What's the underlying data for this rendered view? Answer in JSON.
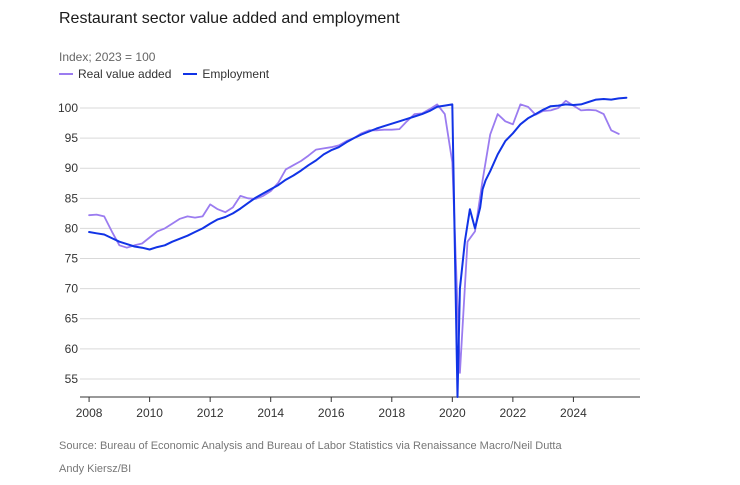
{
  "chart_data": {
    "type": "line",
    "title": "Restaurant sector value added and employment",
    "subtitle": "Index; 2023 = 100",
    "xlabel": "",
    "ylabel": "",
    "xlim": [
      2007.7,
      2026.2
    ],
    "ylim": [
      52,
      101.5
    ],
    "x_ticks": [
      2008,
      2010,
      2012,
      2014,
      2016,
      2018,
      2020,
      2022,
      2024
    ],
    "y_ticks": [
      55,
      60,
      65,
      70,
      75,
      80,
      85,
      90,
      95,
      100
    ],
    "grid": "horizontal",
    "legend": "top-left",
    "series": [
      {
        "name": "Real value added",
        "color": "#9b7cf0",
        "x": [
          2008.0,
          2008.25,
          2008.5,
          2008.75,
          2009.0,
          2009.25,
          2009.5,
          2009.75,
          2010.0,
          2010.25,
          2010.5,
          2010.75,
          2011.0,
          2011.25,
          2011.5,
          2011.75,
          2012.0,
          2012.25,
          2012.5,
          2012.75,
          2013.0,
          2013.25,
          2013.5,
          2013.75,
          2014.0,
          2014.25,
          2014.5,
          2014.75,
          2015.0,
          2015.25,
          2015.5,
          2015.75,
          2016.0,
          2016.25,
          2016.5,
          2016.75,
          2017.0,
          2017.25,
          2017.5,
          2017.75,
          2018.0,
          2018.25,
          2018.5,
          2018.75,
          2019.0,
          2019.25,
          2019.5,
          2019.75,
          2020.0,
          2020.25,
          2020.5,
          2020.75,
          2021.0,
          2021.25,
          2021.5,
          2021.75,
          2022.0,
          2022.25,
          2022.5,
          2022.75,
          2023.0,
          2023.25,
          2023.5,
          2023.75,
          2024.0,
          2024.25,
          2024.5,
          2024.75,
          2025.0,
          2025.25,
          2025.5
        ],
        "values": [
          82.2,
          82.3,
          82.0,
          79.5,
          77.2,
          76.8,
          77.2,
          77.5,
          78.5,
          79.5,
          80.0,
          80.8,
          81.6,
          82.0,
          81.8,
          82.0,
          84.0,
          83.2,
          82.7,
          83.5,
          85.4,
          85.0,
          84.9,
          85.4,
          86.2,
          87.6,
          89.8,
          90.5,
          91.2,
          92.1,
          93.1,
          93.3,
          93.5,
          93.8,
          94.5,
          95.0,
          95.8,
          96.3,
          96.3,
          96.4,
          96.4,
          96.5,
          97.8,
          99.0,
          99.1,
          99.8,
          100.6,
          99.0,
          91.0,
          56.0,
          77.8,
          79.5,
          88.0,
          95.6,
          99.0,
          97.8,
          97.3,
          100.6,
          100.2,
          98.9,
          99.5,
          99.6,
          100.0,
          101.2,
          100.4,
          99.6,
          99.7,
          99.6,
          99.0,
          96.3,
          95.7
        ]
      },
      {
        "name": "Employment",
        "color": "#1133e6",
        "x": [
          2008.0,
          2008.25,
          2008.5,
          2008.75,
          2009.0,
          2009.25,
          2009.5,
          2009.75,
          2010.0,
          2010.25,
          2010.5,
          2010.75,
          2011.0,
          2011.25,
          2011.5,
          2011.75,
          2012.0,
          2012.25,
          2012.5,
          2012.75,
          2013.0,
          2013.25,
          2013.5,
          2013.75,
          2014.0,
          2014.25,
          2014.5,
          2014.75,
          2015.0,
          2015.25,
          2015.5,
          2015.75,
          2016.0,
          2016.25,
          2016.5,
          2016.75,
          2017.0,
          2017.25,
          2017.5,
          2017.75,
          2018.0,
          2018.25,
          2018.5,
          2018.75,
          2019.0,
          2019.25,
          2019.5,
          2019.75,
          2020.0,
          2020.17,
          2020.25,
          2020.42,
          2020.58,
          2020.75,
          2020.92,
          2021.0,
          2021.1,
          2021.25,
          2021.5,
          2021.75,
          2022.0,
          2022.25,
          2022.5,
          2022.75,
          2023.0,
          2023.25,
          2023.5,
          2023.75,
          2024.0,
          2024.25,
          2024.5,
          2024.75,
          2025.0,
          2025.25,
          2025.5,
          2025.75
        ],
        "values": [
          79.4,
          79.2,
          79.0,
          78.4,
          77.8,
          77.4,
          77.0,
          76.8,
          76.5,
          76.9,
          77.2,
          77.8,
          78.3,
          78.8,
          79.4,
          80.0,
          80.8,
          81.5,
          81.9,
          82.5,
          83.3,
          84.2,
          85.1,
          85.8,
          86.5,
          87.2,
          88.1,
          88.8,
          89.6,
          90.5,
          91.3,
          92.3,
          93.0,
          93.5,
          94.3,
          95.0,
          95.6,
          96.1,
          96.6,
          97.0,
          97.4,
          97.8,
          98.2,
          98.6,
          99.0,
          99.5,
          100.2,
          100.4,
          100.6,
          52.0,
          70.0,
          78.0,
          83.2,
          80.0,
          83.5,
          86.5,
          88.0,
          89.5,
          92.3,
          94.5,
          95.8,
          97.3,
          98.3,
          99.0,
          99.7,
          100.3,
          100.4,
          100.6,
          100.5,
          100.6,
          101.0,
          101.4,
          101.5,
          101.4,
          101.6,
          101.7
        ]
      }
    ]
  },
  "source": "Source: Bureau of Economic Analysis and Bureau of Labor Statistics via Renaissance Macro/Neil Dutta",
  "credit": "Andy Kiersz/BI",
  "colors": {
    "grid": "#d9d9d9",
    "axis": "#333333",
    "value_added": "#9b7cf0",
    "employment": "#1133e6"
  }
}
